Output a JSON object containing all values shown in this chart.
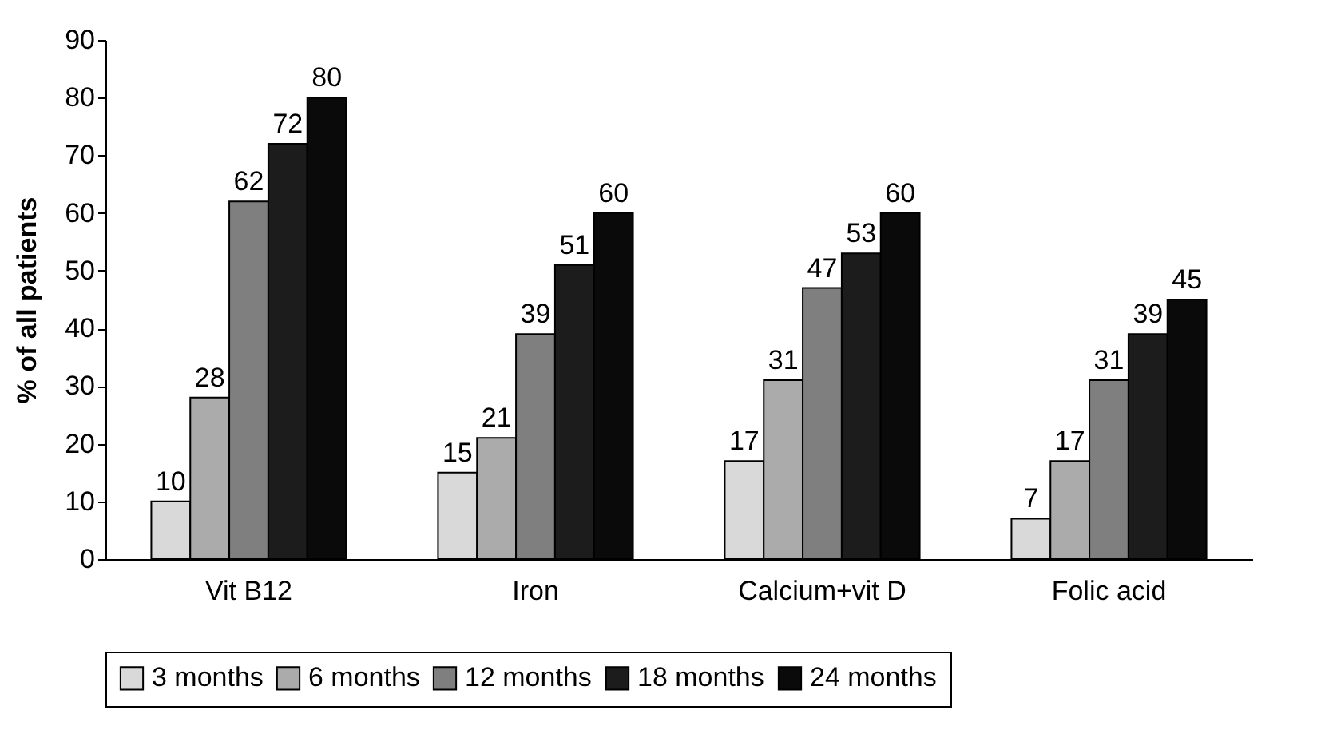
{
  "chart_data": {
    "type": "bar",
    "ylabel": "% of all patients",
    "categories": [
      "Vit B12",
      "Iron",
      "Calcium+vit D",
      "Folic acid"
    ],
    "series": [
      {
        "name": "3 months",
        "color": "#d9d9d9",
        "values": [
          10,
          15,
          17,
          7
        ]
      },
      {
        "name": "6 months",
        "color": "#ababab",
        "values": [
          28,
          21,
          31,
          17
        ]
      },
      {
        "name": "12 months",
        "color": "#7f7f7f",
        "values": [
          62,
          39,
          47,
          31
        ]
      },
      {
        "name": "18 months",
        "color": "#1c1c1c",
        "values": [
          72,
          51,
          53,
          39
        ]
      },
      {
        "name": "24 months",
        "color": "#0a0a0a",
        "values": [
          80,
          60,
          60,
          45
        ]
      }
    ],
    "ylim": [
      0,
      90
    ],
    "yticks": [
      0,
      10,
      20,
      30,
      40,
      50,
      60,
      70,
      80,
      90
    ],
    "grid": false,
    "legend": "bottom",
    "data_labels": true
  }
}
